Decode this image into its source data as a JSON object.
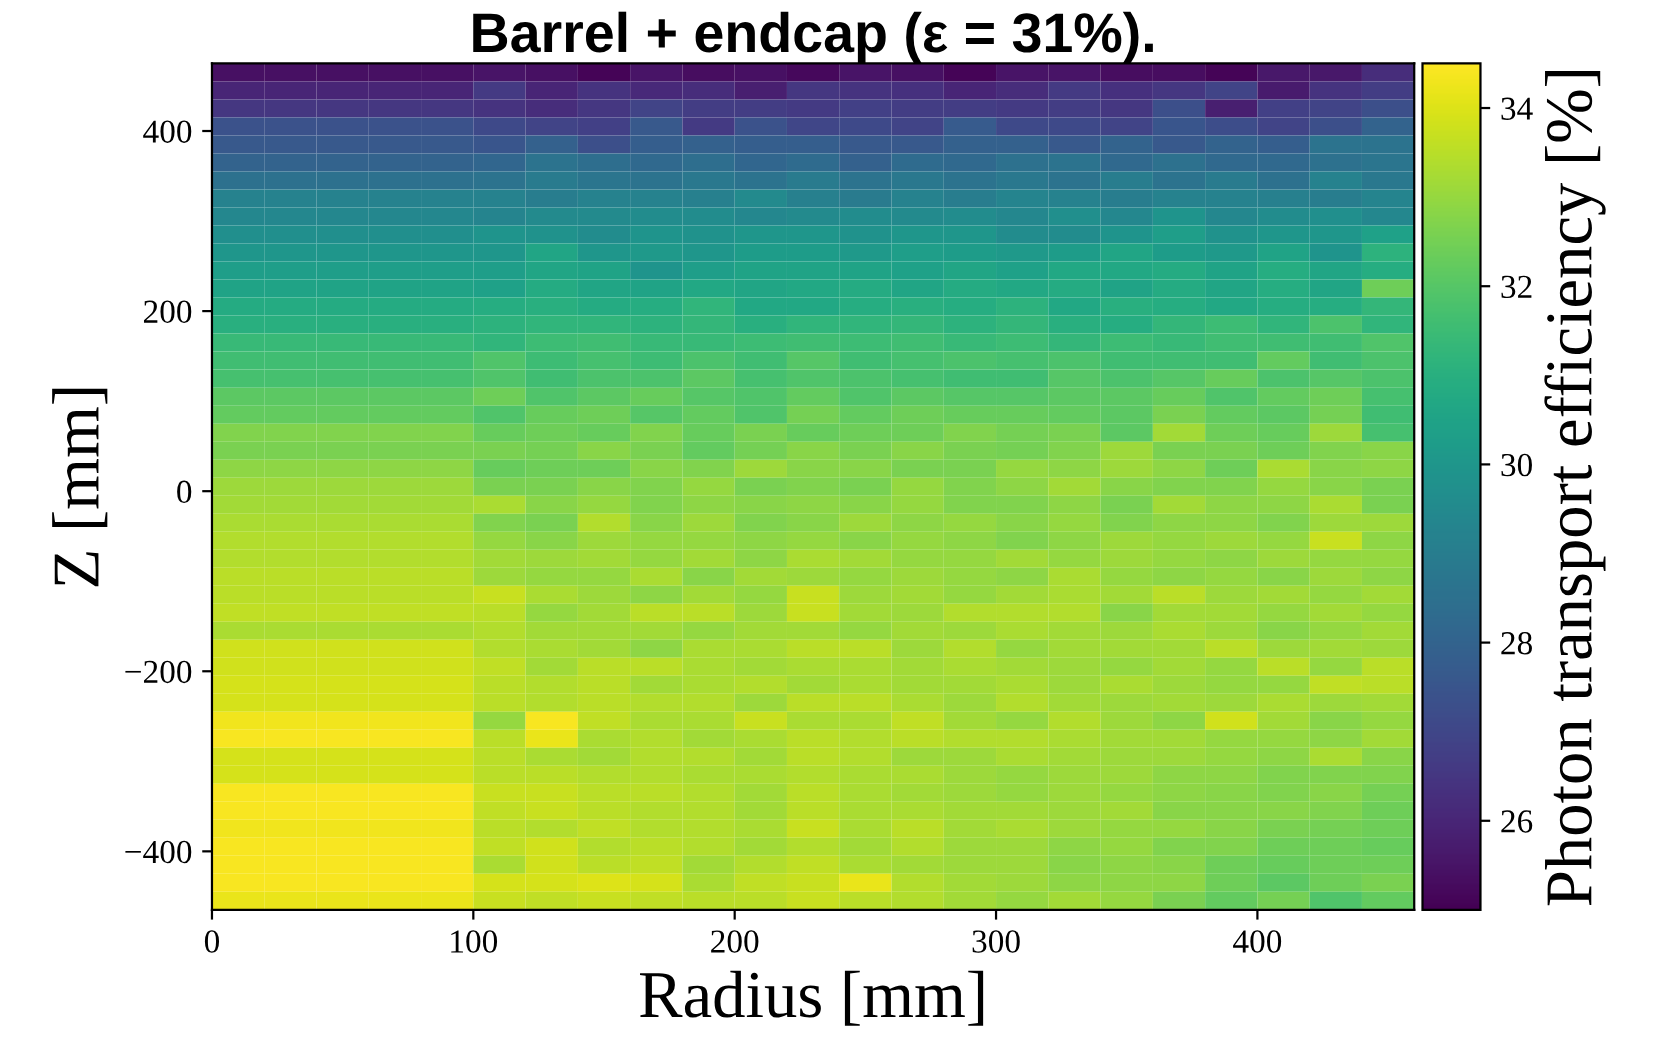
{
  "chart_data": {
    "type": "heatmap",
    "title": "Barrel + endcap (ε = 31%).",
    "xlabel": "Radius [mm]",
    "ylabel": "Z [mm]",
    "clabel": "Photon transport efficiency [%]",
    "x": [
      10,
      30,
      50,
      70,
      90,
      110,
      130,
      150,
      170,
      190,
      210,
      230,
      250,
      270,
      290,
      310,
      330,
      350,
      370,
      390,
      410,
      430,
      450
    ],
    "y": [
      465,
      445,
      425,
      405,
      385,
      365,
      345,
      325,
      305,
      285,
      265,
      245,
      225,
      205,
      185,
      165,
      145,
      125,
      105,
      85,
      65,
      45,
      25,
      5,
      -15,
      -35,
      -55,
      -75,
      -95,
      -115,
      -135,
      -155,
      -175,
      -195,
      -215,
      -235,
      -255,
      -275,
      -295,
      -315,
      -335,
      -355,
      -375,
      -395,
      -415,
      -435,
      -455
    ],
    "xlim": [
      0,
      460
    ],
    "ylim": [
      -465,
      475
    ],
    "xticks": [
      0,
      100,
      200,
      300,
      400
    ],
    "yticks": [
      -400,
      -200,
      0,
      200,
      400
    ],
    "clim": [
      25,
      34.5
    ],
    "cticks": [
      26,
      28,
      30,
      32,
      34
    ],
    "cells": [
      [
        25.4,
        25.4,
        25.4,
        25.4,
        25.4,
        25.5,
        25.4,
        25.1,
        25.5,
        25.3,
        25.4,
        25.2,
        25.5,
        25.4,
        25.1,
        25.5,
        25.5,
        25.3,
        25.3,
        25.1,
        25.6,
        25.6,
        26.2
      ],
      [
        26.0,
        26.0,
        26.0,
        26.0,
        26.0,
        26.6,
        26.0,
        26.4,
        26.1,
        26.2,
        25.8,
        26.5,
        26.4,
        26.3,
        26.0,
        26.2,
        26.6,
        26.3,
        26.5,
        26.9,
        25.7,
        26.4,
        26.7
      ],
      [
        26.5,
        26.5,
        26.5,
        26.5,
        26.5,
        26.4,
        26.2,
        26.5,
        26.9,
        26.7,
        26.7,
        26.6,
        26.8,
        26.7,
        26.7,
        26.6,
        26.7,
        26.5,
        27.3,
        25.8,
        26.8,
        26.9,
        27.3
      ],
      [
        27.4,
        27.4,
        27.4,
        27.4,
        27.4,
        27.1,
        26.9,
        26.8,
        27.6,
        26.6,
        27.4,
        27.0,
        27.1,
        26.9,
        27.7,
        27.1,
        27.1,
        26.9,
        27.5,
        27.2,
        26.9,
        27.3,
        28.0
      ],
      [
        27.6,
        27.6,
        27.6,
        27.6,
        27.6,
        27.5,
        27.9,
        27.3,
        27.8,
        27.9,
        27.8,
        27.8,
        27.6,
        27.6,
        27.9,
        27.9,
        27.6,
        28.0,
        27.6,
        28.0,
        27.8,
        28.6,
        28.6
      ],
      [
        28.0,
        28.0,
        28.0,
        28.0,
        28.0,
        28.1,
        28.6,
        28.4,
        28.2,
        28.4,
        28.1,
        28.3,
        27.9,
        28.3,
        28.2,
        28.5,
        28.6,
        28.2,
        28.5,
        28.2,
        28.2,
        28.5,
        28.7
      ],
      [
        28.5,
        28.5,
        28.5,
        28.5,
        28.5,
        28.6,
        28.9,
        28.7,
        28.6,
        28.8,
        28.6,
        28.9,
        28.6,
        28.8,
        28.6,
        28.8,
        28.6,
        29.0,
        28.6,
        28.9,
        28.5,
        29.2,
        28.8
      ],
      [
        29.2,
        29.2,
        29.2,
        29.2,
        29.2,
        29.2,
        29.0,
        29.2,
        29.2,
        29.1,
        29.5,
        29.1,
        28.9,
        29.2,
        29.0,
        29.3,
        29.2,
        29.0,
        29.2,
        29.2,
        29.1,
        29.0,
        29.3
      ],
      [
        29.4,
        29.4,
        29.4,
        29.4,
        29.4,
        29.3,
        29.5,
        29.5,
        29.6,
        29.6,
        29.4,
        29.5,
        29.6,
        29.5,
        29.6,
        29.4,
        29.7,
        29.4,
        29.9,
        29.4,
        29.6,
        29.7,
        29.4
      ],
      [
        29.7,
        29.7,
        29.7,
        29.7,
        29.7,
        29.9,
        29.8,
        29.6,
        29.9,
        29.8,
        30.0,
        30.0,
        29.8,
        30.0,
        30.0,
        29.6,
        29.6,
        29.9,
        30.3,
        29.8,
        30.0,
        30.0,
        30.4
      ],
      [
        30.0,
        30.0,
        30.0,
        30.0,
        30.0,
        30.0,
        30.6,
        30.0,
        30.1,
        30.0,
        30.2,
        30.2,
        30.1,
        30.3,
        30.2,
        30.1,
        30.2,
        30.6,
        30.2,
        30.1,
        30.5,
        29.9,
        31.1
      ],
      [
        30.3,
        30.3,
        30.3,
        30.3,
        30.3,
        30.3,
        30.6,
        30.5,
        29.9,
        30.3,
        30.5,
        30.5,
        30.5,
        30.4,
        30.6,
        30.4,
        30.7,
        30.7,
        30.8,
        30.5,
        30.9,
        30.6,
        30.9
      ],
      [
        30.5,
        30.5,
        30.5,
        30.5,
        30.5,
        30.4,
        30.8,
        30.6,
        30.5,
        30.7,
        30.6,
        30.7,
        30.8,
        30.6,
        30.8,
        30.7,
        30.8,
        30.5,
        30.8,
        30.6,
        30.9,
        30.6,
        32.4
      ],
      [
        30.8,
        30.8,
        30.8,
        30.8,
        30.8,
        30.9,
        31.0,
        30.8,
        30.9,
        31.2,
        30.7,
        30.7,
        30.9,
        31.0,
        30.9,
        31.1,
        30.7,
        31.0,
        30.9,
        30.7,
        30.9,
        30.9,
        31.3
      ],
      [
        31.0,
        31.0,
        31.0,
        31.0,
        31.0,
        31.1,
        31.2,
        31.2,
        31.1,
        31.3,
        31.0,
        31.2,
        31.2,
        31.3,
        31.1,
        31.3,
        31.0,
        30.9,
        31.3,
        31.5,
        31.2,
        31.8,
        31.2
      ],
      [
        31.4,
        31.4,
        31.4,
        31.4,
        31.4,
        31.2,
        31.5,
        31.6,
        31.4,
        31.4,
        31.5,
        31.6,
        31.5,
        31.6,
        31.4,
        31.5,
        31.3,
        31.5,
        31.4,
        31.6,
        31.6,
        31.6,
        31.9
      ],
      [
        31.6,
        31.6,
        31.6,
        31.6,
        31.6,
        31.9,
        31.5,
        31.7,
        31.5,
        31.8,
        31.6,
        32.0,
        31.6,
        31.7,
        31.8,
        31.7,
        31.8,
        31.6,
        31.6,
        31.6,
        32.2,
        31.6,
        31.8
      ],
      [
        31.7,
        31.7,
        31.7,
        31.7,
        31.7,
        31.9,
        31.6,
        31.8,
        31.8,
        32.1,
        31.7,
        31.9,
        31.8,
        31.7,
        31.6,
        31.6,
        32.0,
        31.8,
        32.0,
        32.3,
        31.8,
        32.0,
        31.8
      ],
      [
        32.1,
        32.1,
        32.1,
        32.1,
        32.1,
        32.4,
        31.9,
        32.1,
        32.3,
        32.0,
        31.9,
        32.2,
        31.9,
        32.1,
        32.0,
        32.0,
        32.1,
        32.1,
        32.3,
        31.9,
        32.2,
        32.4,
        31.7
      ],
      [
        32.2,
        32.2,
        32.2,
        32.2,
        32.2,
        31.9,
        32.3,
        32.4,
        32.0,
        32.2,
        31.9,
        32.5,
        32.2,
        32.4,
        32.3,
        32.3,
        32.2,
        32.1,
        32.6,
        32.2,
        32.1,
        32.5,
        31.6
      ],
      [
        32.7,
        32.7,
        32.7,
        32.7,
        32.7,
        32.3,
        32.4,
        32.3,
        32.7,
        32.3,
        32.6,
        32.3,
        32.4,
        32.4,
        32.7,
        32.5,
        32.6,
        32.1,
        33.2,
        32.4,
        32.3,
        33.1,
        31.7
      ],
      [
        32.6,
        32.6,
        32.6,
        32.6,
        32.6,
        32.6,
        32.5,
        32.8,
        32.6,
        32.2,
        32.5,
        32.8,
        32.6,
        32.8,
        32.6,
        32.5,
        32.7,
        33.1,
        32.6,
        32.6,
        32.4,
        32.7,
        32.8
      ],
      [
        32.9,
        32.9,
        32.9,
        32.9,
        32.9,
        32.3,
        32.4,
        32.4,
        32.8,
        32.7,
        33.1,
        32.8,
        32.8,
        32.6,
        32.6,
        33.0,
        32.9,
        33.1,
        32.9,
        32.4,
        33.3,
        32.8,
        32.9
      ],
      [
        33.1,
        33.1,
        33.1,
        33.1,
        33.1,
        32.6,
        32.6,
        32.8,
        32.7,
        33.0,
        32.6,
        32.7,
        32.6,
        33.0,
        32.7,
        32.9,
        33.2,
        32.8,
        32.7,
        32.7,
        33.0,
        32.8,
        32.6
      ],
      [
        33.2,
        33.2,
        33.2,
        33.2,
        33.2,
        33.3,
        32.8,
        33.0,
        32.7,
        32.9,
        32.8,
        32.9,
        32.8,
        33.0,
        32.7,
        32.7,
        32.9,
        32.6,
        33.2,
        32.9,
        32.9,
        33.3,
        32.6
      ],
      [
        33.3,
        33.3,
        33.3,
        33.3,
        33.3,
        32.7,
        32.6,
        33.4,
        32.8,
        33.1,
        32.7,
        32.8,
        33.1,
        32.9,
        33.0,
        32.8,
        33.0,
        32.7,
        32.9,
        32.9,
        32.7,
        33.1,
        33.1
      ],
      [
        33.4,
        33.4,
        33.4,
        33.4,
        33.4,
        33.0,
        32.8,
        33.1,
        33.0,
        33.0,
        32.9,
        33.0,
        32.8,
        33.0,
        32.9,
        32.7,
        32.9,
        33.1,
        33.0,
        33.1,
        33.0,
        33.7,
        32.9
      ],
      [
        33.4,
        33.4,
        33.4,
        33.4,
        33.4,
        33.2,
        33.1,
        33.2,
        33.0,
        33.2,
        32.9,
        33.3,
        33.2,
        33.0,
        33.0,
        33.2,
        33.0,
        33.1,
        33.0,
        32.9,
        33.1,
        33.0,
        33.0
      ],
      [
        33.5,
        33.5,
        33.5,
        33.5,
        33.5,
        33.1,
        33.0,
        33.0,
        33.3,
        32.8,
        33.2,
        33.1,
        33.0,
        33.1,
        33.0,
        32.9,
        33.3,
        33.0,
        32.9,
        33.0,
        32.8,
        33.1,
        32.9
      ],
      [
        33.5,
        33.5,
        33.5,
        33.5,
        33.5,
        33.7,
        33.3,
        33.1,
        32.9,
        33.2,
        33.0,
        33.7,
        33.1,
        33.2,
        33.0,
        33.2,
        33.3,
        33.2,
        33.5,
        33.1,
        33.2,
        33.0,
        33.2
      ],
      [
        33.6,
        33.6,
        33.6,
        33.6,
        33.6,
        33.5,
        33.0,
        33.2,
        33.5,
        33.5,
        33.1,
        33.7,
        33.2,
        33.1,
        33.4,
        33.4,
        33.4,
        32.8,
        33.2,
        33.2,
        33.0,
        33.2,
        33.0
      ],
      [
        33.3,
        33.3,
        33.3,
        33.3,
        33.3,
        33.4,
        33.2,
        33.2,
        33.2,
        33.0,
        33.2,
        33.2,
        33.0,
        33.2,
        33.1,
        33.3,
        33.2,
        33.1,
        33.3,
        33.1,
        32.8,
        33.0,
        33.2
      ],
      [
        33.8,
        33.8,
        33.8,
        33.8,
        33.8,
        33.4,
        33.3,
        33.2,
        32.9,
        33.3,
        33.3,
        33.5,
        33.5,
        33.1,
        33.4,
        33.0,
        33.2,
        33.2,
        33.2,
        33.5,
        33.1,
        33.2,
        33.1
      ],
      [
        33.8,
        33.8,
        33.8,
        33.8,
        33.8,
        33.6,
        33.2,
        33.5,
        33.5,
        33.3,
        33.2,
        33.3,
        33.3,
        33.2,
        33.3,
        33.2,
        33.1,
        33.0,
        33.2,
        33.0,
        33.5,
        33.0,
        33.5
      ],
      [
        33.9,
        33.9,
        33.9,
        33.9,
        33.9,
        33.5,
        33.4,
        33.5,
        33.2,
        33.3,
        33.4,
        33.2,
        33.3,
        33.2,
        33.2,
        33.3,
        33.1,
        33.3,
        33.1,
        33.0,
        33.0,
        33.6,
        33.5
      ],
      [
        33.9,
        33.9,
        33.9,
        33.9,
        33.9,
        33.5,
        33.4,
        33.5,
        33.4,
        33.4,
        33.1,
        33.5,
        33.5,
        33.3,
        33.1,
        33.4,
        33.2,
        33.1,
        33.2,
        33.1,
        33.3,
        33.1,
        33.2
      ],
      [
        34.3,
        34.3,
        34.3,
        34.3,
        34.3,
        33.0,
        34.4,
        33.6,
        33.3,
        33.3,
        33.7,
        33.3,
        33.3,
        33.6,
        33.2,
        33.0,
        33.4,
        33.1,
        32.9,
        33.8,
        33.2,
        32.8,
        33.0
      ],
      [
        34.4,
        34.4,
        34.4,
        34.4,
        34.4,
        33.5,
        34.2,
        33.3,
        33.4,
        33.2,
        33.3,
        33.5,
        33.4,
        33.5,
        33.4,
        33.4,
        33.3,
        33.2,
        33.2,
        33.0,
        33.0,
        32.9,
        33.2
      ],
      [
        33.9,
        33.9,
        33.9,
        33.9,
        33.9,
        33.5,
        33.3,
        33.2,
        33.4,
        33.4,
        33.2,
        33.5,
        33.4,
        33.1,
        33.1,
        33.3,
        33.2,
        33.1,
        33.1,
        33.0,
        32.9,
        33.3,
        32.8
      ],
      [
        33.9,
        33.9,
        33.9,
        33.9,
        33.9,
        33.5,
        33.5,
        33.4,
        33.4,
        33.3,
        33.3,
        33.4,
        33.3,
        33.3,
        33.1,
        33.0,
        33.1,
        33.1,
        32.9,
        32.9,
        32.7,
        32.7,
        32.7
      ],
      [
        34.4,
        34.4,
        34.4,
        34.4,
        34.4,
        33.7,
        33.7,
        33.5,
        33.5,
        33.4,
        33.2,
        33.5,
        33.3,
        33.2,
        33.1,
        33.0,
        33.1,
        33.0,
        32.9,
        32.8,
        32.7,
        32.8,
        32.5
      ],
      [
        34.4,
        34.4,
        34.4,
        34.4,
        34.4,
        33.6,
        33.7,
        33.5,
        33.4,
        33.4,
        33.2,
        33.5,
        33.3,
        33.3,
        33.2,
        33.2,
        33.1,
        33.2,
        32.8,
        32.8,
        32.8,
        32.7,
        32.4
      ],
      [
        34.3,
        34.3,
        34.3,
        34.3,
        34.3,
        33.5,
        33.4,
        33.6,
        33.4,
        33.4,
        33.3,
        33.7,
        33.3,
        33.5,
        33.2,
        33.3,
        33.1,
        33.0,
        33.0,
        32.8,
        32.6,
        32.5,
        32.4
      ],
      [
        34.4,
        34.4,
        34.4,
        34.4,
        34.4,
        33.6,
        33.8,
        33.4,
        33.5,
        33.4,
        33.2,
        33.4,
        33.2,
        33.4,
        33.1,
        33.1,
        32.9,
        33.0,
        32.7,
        32.7,
        32.4,
        32.4,
        32.3
      ],
      [
        34.4,
        34.4,
        34.4,
        34.4,
        34.4,
        33.3,
        33.8,
        33.5,
        33.6,
        33.2,
        33.4,
        33.6,
        33.3,
        33.2,
        33.1,
        33.1,
        32.8,
        32.9,
        32.8,
        32.4,
        32.3,
        32.4,
        32.4
      ],
      [
        34.4,
        34.4,
        34.4,
        34.4,
        34.4,
        33.9,
        33.9,
        34.0,
        33.9,
        33.3,
        33.6,
        33.7,
        34.2,
        33.4,
        33.2,
        33.1,
        32.9,
        32.9,
        32.9,
        32.4,
        32.1,
        32.4,
        32.6
      ],
      [
        34.2,
        34.2,
        34.2,
        34.2,
        34.2,
        33.7,
        33.6,
        33.7,
        33.6,
        33.5,
        33.5,
        33.7,
        33.5,
        33.4,
        33.2,
        33.0,
        33.2,
        33.0,
        32.6,
        32.2,
        32.5,
        31.9,
        32.2
      ]
    ]
  }
}
